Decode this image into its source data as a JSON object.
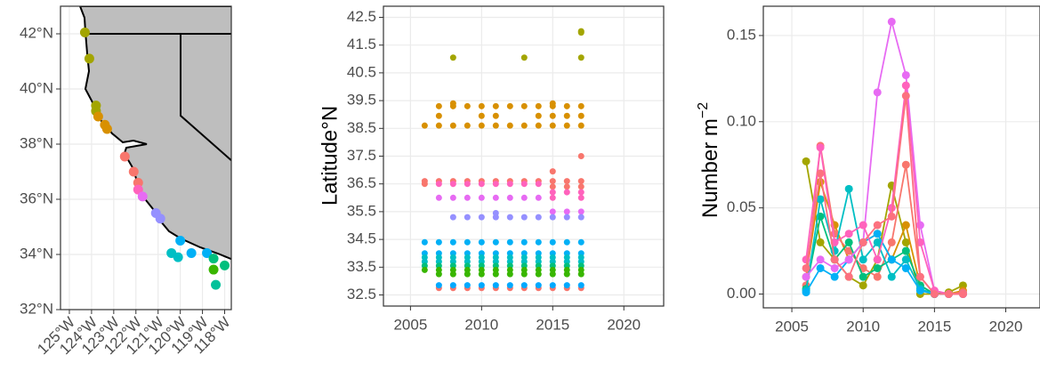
{
  "chart_data": [
    {
      "type": "map",
      "xlim": [
        -125.4,
        -117.7
      ],
      "ylim": [
        32,
        43
      ],
      "xticks": [
        {
          "value": -125,
          "label": "125°W"
        },
        {
          "value": -124,
          "label": "124°W"
        },
        {
          "value": -123,
          "label": "123°W"
        },
        {
          "value": -122,
          "label": "122°W"
        },
        {
          "value": -121,
          "label": "121°W"
        },
        {
          "value": -120,
          "label": "120°W"
        },
        {
          "value": -119,
          "label": "119°W"
        },
        {
          "value": -118,
          "label": "118°W"
        }
      ],
      "yticks": [
        {
          "value": 32,
          "label": "32°N"
        },
        {
          "value": 34,
          "label": "34°N"
        },
        {
          "value": 36,
          "label": "36°N"
        },
        {
          "value": 38,
          "label": "38°N"
        },
        {
          "value": 40,
          "label": "40°N"
        },
        {
          "value": 42,
          "label": "42°N"
        }
      ],
      "grid": true,
      "series": [
        {
          "color": "#a3a500",
          "x": [
            -124.3,
            -124.1,
            -123.8,
            -123.8
          ],
          "y": [
            42.05,
            41.1,
            39.4,
            39.2
          ]
        },
        {
          "color": "#d89000",
          "x": [
            -123.7,
            -123.4,
            -123.3
          ],
          "y": [
            39.0,
            38.7,
            38.55
          ]
        },
        {
          "color": "#f8766d",
          "x": [
            -122.5,
            -122.1,
            -121.9
          ],
          "y": [
            37.55,
            37.0,
            36.6
          ]
        },
        {
          "color": "#ff62bc",
          "x": [
            -121.9
          ],
          "y": [
            36.35
          ]
        },
        {
          "color": "#e76bf3",
          "x": [
            -121.7
          ],
          "y": [
            36.1
          ]
        },
        {
          "color": "#9590ff",
          "x": [
            -121.1,
            -120.9
          ],
          "y": [
            35.5,
            35.3
          ]
        },
        {
          "color": "#00b0f6",
          "x": [
            -120.0,
            -119.5,
            -118.8
          ],
          "y": [
            34.5,
            34.05,
            34.05
          ]
        },
        {
          "color": "#00bfc4",
          "x": [
            -120.4,
            -120.1
          ],
          "y": [
            34.05,
            33.9
          ]
        },
        {
          "color": "#00bf7d",
          "x": [
            -118.5,
            -118.0
          ],
          "y": [
            33.85,
            33.6
          ]
        },
        {
          "color": "#39b600",
          "x": [
            -118.5
          ],
          "y": [
            33.45
          ]
        },
        {
          "color": "#00c19a",
          "x": [
            -118.4
          ],
          "y": [
            32.9
          ]
        }
      ]
    },
    {
      "type": "scatter",
      "ylabel": "Latitude°N",
      "xlim": [
        2003.1,
        2022.8
      ],
      "ylim": [
        32.1,
        42.9
      ],
      "xticks": [
        2005,
        2010,
        2015,
        2020
      ],
      "yticks": [
        32.5,
        33.5,
        34.5,
        35.5,
        36.5,
        37.5,
        38.5,
        39.5,
        40.5,
        41.5,
        42.5
      ],
      "grid": true,
      "series": [
        {
          "color": "#a3a500",
          "x": [
            2008,
            2013,
            2017,
            2017,
            2017
          ],
          "y": [
            41.05,
            41.05,
            41.05,
            42.0,
            41.95
          ]
        },
        {
          "color": "#d89000",
          "x": [
            2007,
            2008,
            2009,
            2010,
            2011,
            2012,
            2013,
            2014,
            2015,
            2016,
            2017,
            2015,
            2008
          ],
          "y": [
            39.3,
            39.3,
            39.3,
            39.3,
            39.3,
            39.3,
            39.3,
            39.3,
            39.3,
            39.3,
            39.3,
            39.4,
            39.4
          ]
        },
        {
          "color": "#d89000",
          "x": [
            2007,
            2010,
            2011,
            2014,
            2015,
            2016,
            2017,
            2006,
            2007,
            2008,
            2009,
            2010,
            2011,
            2012,
            2013,
            2014,
            2015,
            2016,
            2017
          ],
          "y": [
            38.95,
            38.95,
            38.95,
            38.95,
            38.95,
            38.95,
            38.95,
            38.6,
            38.6,
            38.6,
            38.6,
            38.6,
            38.6,
            38.6,
            38.6,
            38.6,
            38.6,
            38.6,
            38.6
          ]
        },
        {
          "color": "#f8766d",
          "x": [
            2006,
            2007,
            2008,
            2009,
            2010,
            2011,
            2012,
            2013,
            2014,
            2015,
            2016,
            2017,
            2017,
            2015,
            2015,
            2016,
            2017,
            2006
          ],
          "y": [
            36.6,
            36.6,
            36.6,
            36.6,
            36.6,
            36.6,
            36.6,
            36.6,
            36.6,
            36.6,
            36.6,
            36.6,
            37.5,
            36.95,
            36.4,
            36.4,
            36.4,
            36.5
          ]
        },
        {
          "color": "#ff62bc",
          "x": [
            2007,
            2008,
            2009,
            2010,
            2011,
            2012,
            2013,
            2014,
            2015,
            2016,
            2017,
            2015,
            2017
          ],
          "y": [
            36.5,
            36.5,
            36.5,
            36.5,
            36.5,
            36.5,
            36.5,
            36.5,
            36.2,
            36.2,
            36.2,
            36.0,
            36.0
          ]
        },
        {
          "color": "#e76bf3",
          "x": [
            2007,
            2008,
            2009,
            2010,
            2011,
            2012,
            2013,
            2014,
            2015,
            2016,
            2017
          ],
          "y": [
            36.0,
            36.0,
            36.0,
            36.0,
            36.0,
            36.0,
            36.0,
            36.0,
            35.5,
            35.5,
            35.5
          ]
        },
        {
          "color": "#9590ff",
          "x": [
            2008,
            2009,
            2010,
            2011,
            2012,
            2013,
            2014,
            2015,
            2016,
            2017,
            2011
          ],
          "y": [
            35.3,
            35.3,
            35.3,
            35.3,
            35.3,
            35.3,
            35.3,
            35.3,
            35.3,
            35.3,
            35.45
          ]
        },
        {
          "color": "#00b0f6",
          "x": [
            2006,
            2007,
            2008,
            2009,
            2010,
            2011,
            2012,
            2013,
            2014,
            2015,
            2016,
            2017,
            2006,
            2007,
            2008,
            2009,
            2010,
            2011,
            2012,
            2013,
            2014,
            2015,
            2016,
            2017
          ],
          "y": [
            34.4,
            34.4,
            34.4,
            34.4,
            34.4,
            34.4,
            34.4,
            34.4,
            34.4,
            34.4,
            34.4,
            34.4,
            34.0,
            34.0,
            34.0,
            34.0,
            34.0,
            34.0,
            34.0,
            34.0,
            34.0,
            34.0,
            34.0,
            34.0
          ]
        },
        {
          "color": "#00bfc4",
          "x": [
            2006,
            2007,
            2008,
            2009,
            2010,
            2011,
            2012,
            2013,
            2014,
            2015,
            2016,
            2017,
            2006,
            2007,
            2008,
            2009,
            2010,
            2011,
            2012,
            2013,
            2014,
            2015,
            2016,
            2017
          ],
          "y": [
            33.85,
            33.85,
            33.85,
            33.85,
            33.85,
            33.85,
            33.85,
            33.85,
            33.85,
            33.85,
            33.85,
            33.85,
            33.7,
            33.7,
            33.7,
            33.7,
            33.7,
            33.7,
            33.7,
            33.7,
            33.7,
            33.7,
            33.7,
            33.7
          ]
        },
        {
          "color": "#00bf7d",
          "x": [
            2006,
            2007,
            2008,
            2009,
            2010,
            2011,
            2012,
            2013,
            2014,
            2015,
            2016,
            2017
          ],
          "y": [
            33.55,
            33.55,
            33.55,
            33.55,
            33.55,
            33.55,
            33.55,
            33.55,
            33.55,
            33.55,
            33.55,
            33.55
          ]
        },
        {
          "color": "#39b600",
          "x": [
            2006,
            2007,
            2008,
            2009,
            2010,
            2011,
            2012,
            2013,
            2014,
            2015,
            2016,
            2017,
            2007,
            2008,
            2009,
            2010,
            2011,
            2012,
            2013,
            2014,
            2015,
            2016,
            2017
          ],
          "y": [
            33.4,
            33.4,
            33.4,
            33.4,
            33.4,
            33.4,
            33.4,
            33.4,
            33.4,
            33.4,
            33.4,
            33.4,
            33.25,
            33.25,
            33.25,
            33.25,
            33.25,
            33.25,
            33.25,
            33.25,
            33.25,
            33.25,
            33.25
          ]
        },
        {
          "color": "#f8766d",
          "x": [
            2007,
            2008,
            2009,
            2010,
            2011,
            2012,
            2013,
            2014,
            2015,
            2016,
            2017
          ],
          "y": [
            32.75,
            32.75,
            32.75,
            32.75,
            32.75,
            32.75,
            32.75,
            32.75,
            32.75,
            32.75,
            32.75
          ]
        },
        {
          "color": "#00a9ff",
          "x": [
            2007,
            2008,
            2009,
            2010,
            2011,
            2012,
            2013,
            2014,
            2015,
            2016,
            2017
          ],
          "y": [
            32.85,
            32.85,
            32.85,
            32.85,
            32.85,
            32.85,
            32.85,
            32.85,
            32.85,
            32.85,
            32.85
          ]
        }
      ]
    },
    {
      "type": "line",
      "ylabel": "Number m",
      "ylabel_superscript": "−2",
      "xlim": [
        2003,
        2022.4
      ],
      "ylim": [
        -0.008,
        0.167
      ],
      "xticks": [
        2005,
        2010,
        2015,
        2020
      ],
      "yticks": [
        {
          "value": 0,
          "label": "0.00"
        },
        {
          "value": 0.05,
          "label": "0.05"
        },
        {
          "value": 0.1,
          "label": "0.10"
        },
        {
          "value": 0.15,
          "label": "0.15"
        }
      ],
      "grid": true,
      "x": [
        2006,
        2007,
        2008,
        2009,
        2010,
        2011,
        2012,
        2013,
        2014,
        2015,
        2016,
        2017
      ],
      "series": [
        {
          "color": "#a3a500",
          "values": [
            0.077,
            0.03,
            0.02,
            0.01,
            0.005,
            0.02,
            0.063,
            0.03,
            0.0,
            0.0,
            0.001,
            0.005
          ]
        },
        {
          "color": "#d89000",
          "values": [
            0.01,
            0.065,
            0.04,
            0.02,
            0.03,
            0.035,
            0.02,
            0.04,
            0.005,
            0.0,
            0.0,
            0.002
          ]
        },
        {
          "color": "#f8766d",
          "values": [
            0.005,
            0.086,
            0.035,
            0.025,
            0.015,
            0.01,
            0.03,
            0.075,
            0.01,
            0.0,
            0.0,
            0.001
          ]
        },
        {
          "color": "#00bf7d",
          "values": [
            0.003,
            0.045,
            0.02,
            0.03,
            0.01,
            0.015,
            0.02,
            0.025,
            0.005,
            0.0,
            0.0,
            0.0
          ]
        },
        {
          "color": "#00bfc4",
          "values": [
            0.002,
            0.055,
            0.025,
            0.061,
            0.02,
            0.03,
            0.01,
            0.02,
            0.003,
            0.0,
            0.0,
            0.0
          ]
        },
        {
          "color": "#00b0f6",
          "values": [
            0.001,
            0.015,
            0.01,
            0.02,
            0.03,
            0.035,
            0.02,
            0.015,
            0.002,
            0.0,
            0.0,
            0.0
          ]
        },
        {
          "color": "#e76bf3",
          "values": [
            0.01,
            0.02,
            0.015,
            0.02,
            0.03,
            0.117,
            0.158,
            0.127,
            0.04,
            0.002,
            0.0,
            0.0
          ]
        },
        {
          "color": "#ff62bc",
          "values": [
            0.02,
            0.085,
            0.03,
            0.035,
            0.04,
            0.02,
            0.05,
            0.121,
            0.03,
            0.002,
            0.0,
            0.0
          ]
        },
        {
          "color": "#fc717f",
          "values": [
            0.015,
            0.07,
            0.02,
            0.01,
            0.03,
            0.04,
            0.045,
            0.115,
            0.01,
            0.0,
            0.0,
            0.0
          ]
        }
      ]
    }
  ]
}
